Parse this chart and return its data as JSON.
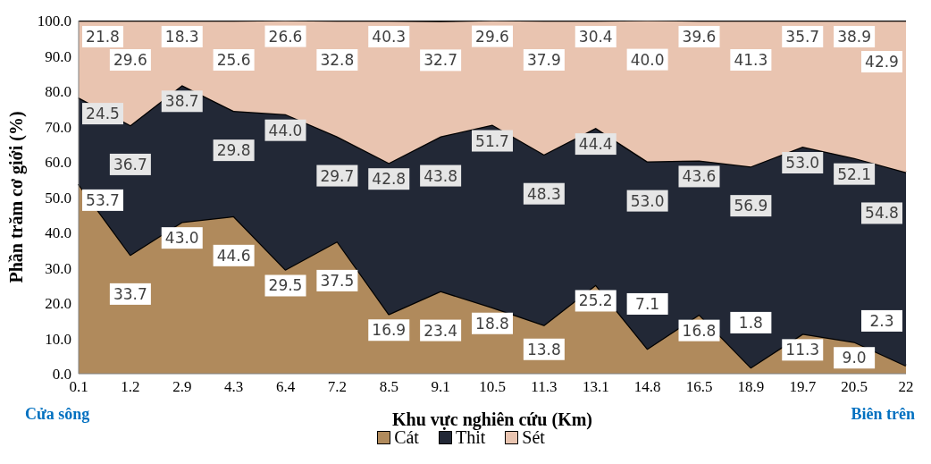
{
  "chart_data": {
    "type": "area",
    "stacked": true,
    "xlabel": "Khu vực nghiên cứu (Km)",
    "ylabel": "Phần trăm cơ giới (%)",
    "categories": [
      "0.1",
      "1.2",
      "2.9",
      "4.3",
      "6.4",
      "7.2",
      "8.5",
      "9.1",
      "10.5",
      "11.3",
      "13.1",
      "14.8",
      "16.5",
      "18.9",
      "19.7",
      "20.5",
      "22"
    ],
    "series": [
      {
        "name": "Cát",
        "color": "#b08a5c",
        "values": [
          53.7,
          33.7,
          43.0,
          44.6,
          29.5,
          37.5,
          16.9,
          23.4,
          18.8,
          13.8,
          25.2,
          7.1,
          16.8,
          1.8,
          11.3,
          9.0,
          2.3
        ],
        "value_labels": [
          "53.7",
          "33.7",
          "43.0",
          "44.6",
          "29.5",
          "37.5",
          "16.9",
          "23.4",
          "18.8",
          "13.8",
          "25.2",
          "7.1",
          "16.8",
          "1.8",
          "11.3",
          "9.0",
          "2.3"
        ]
      },
      {
        "name": "Thit",
        "color": "#222836",
        "values": [
          24.5,
          36.7,
          38.7,
          29.8,
          44.0,
          29.7,
          42.8,
          43.8,
          51.7,
          48.3,
          44.4,
          53.0,
          43.6,
          56.9,
          53.0,
          52.1,
          54.8
        ],
        "value_labels": [
          "24.5",
          "36.7",
          "38.7",
          "29.8",
          "44.0",
          "29.7",
          "42.8",
          "43.8",
          "51.7",
          "48.3",
          "44.4",
          "53.0",
          "43.6",
          "56.9",
          "53.0",
          "52.1",
          "54.8"
        ]
      },
      {
        "name": "Sét",
        "color": "#e9c4b0",
        "values": [
          21.8,
          29.6,
          18.3,
          25.6,
          26.6,
          32.8,
          40.3,
          32.7,
          29.6,
          37.9,
          30.4,
          40.0,
          39.6,
          41.3,
          35.7,
          38.9,
          42.9
        ],
        "value_labels": [
          "21.8",
          "29.6",
          "18.3",
          "25.6",
          "26.6",
          "32.8",
          "40.3",
          "32.7",
          "29.6",
          "37.9",
          "30.4",
          "40.0",
          "39.6",
          "41.3",
          "35.7",
          "38.9",
          "42.9"
        ]
      }
    ],
    "ylim": [
      0,
      100
    ],
    "yticks": [
      {
        "value": 0,
        "label": "0.0"
      },
      {
        "value": 10,
        "label": "10.0"
      },
      {
        "value": 20,
        "label": "20.0"
      },
      {
        "value": 30,
        "label": "30.0"
      },
      {
        "value": 40,
        "label": "40.0"
      },
      {
        "value": 50,
        "label": "50.0"
      },
      {
        "value": 60,
        "label": "60.0"
      },
      {
        "value": 70,
        "label": "70.0"
      },
      {
        "value": 80,
        "label": "80.0"
      },
      {
        "value": 90,
        "label": "90.0"
      },
      {
        "value": 100,
        "label": "100.0"
      }
    ],
    "grid": false,
    "legend": "bottom",
    "annotations": [
      "Cửa sông",
      "Biên trên"
    ]
  }
}
